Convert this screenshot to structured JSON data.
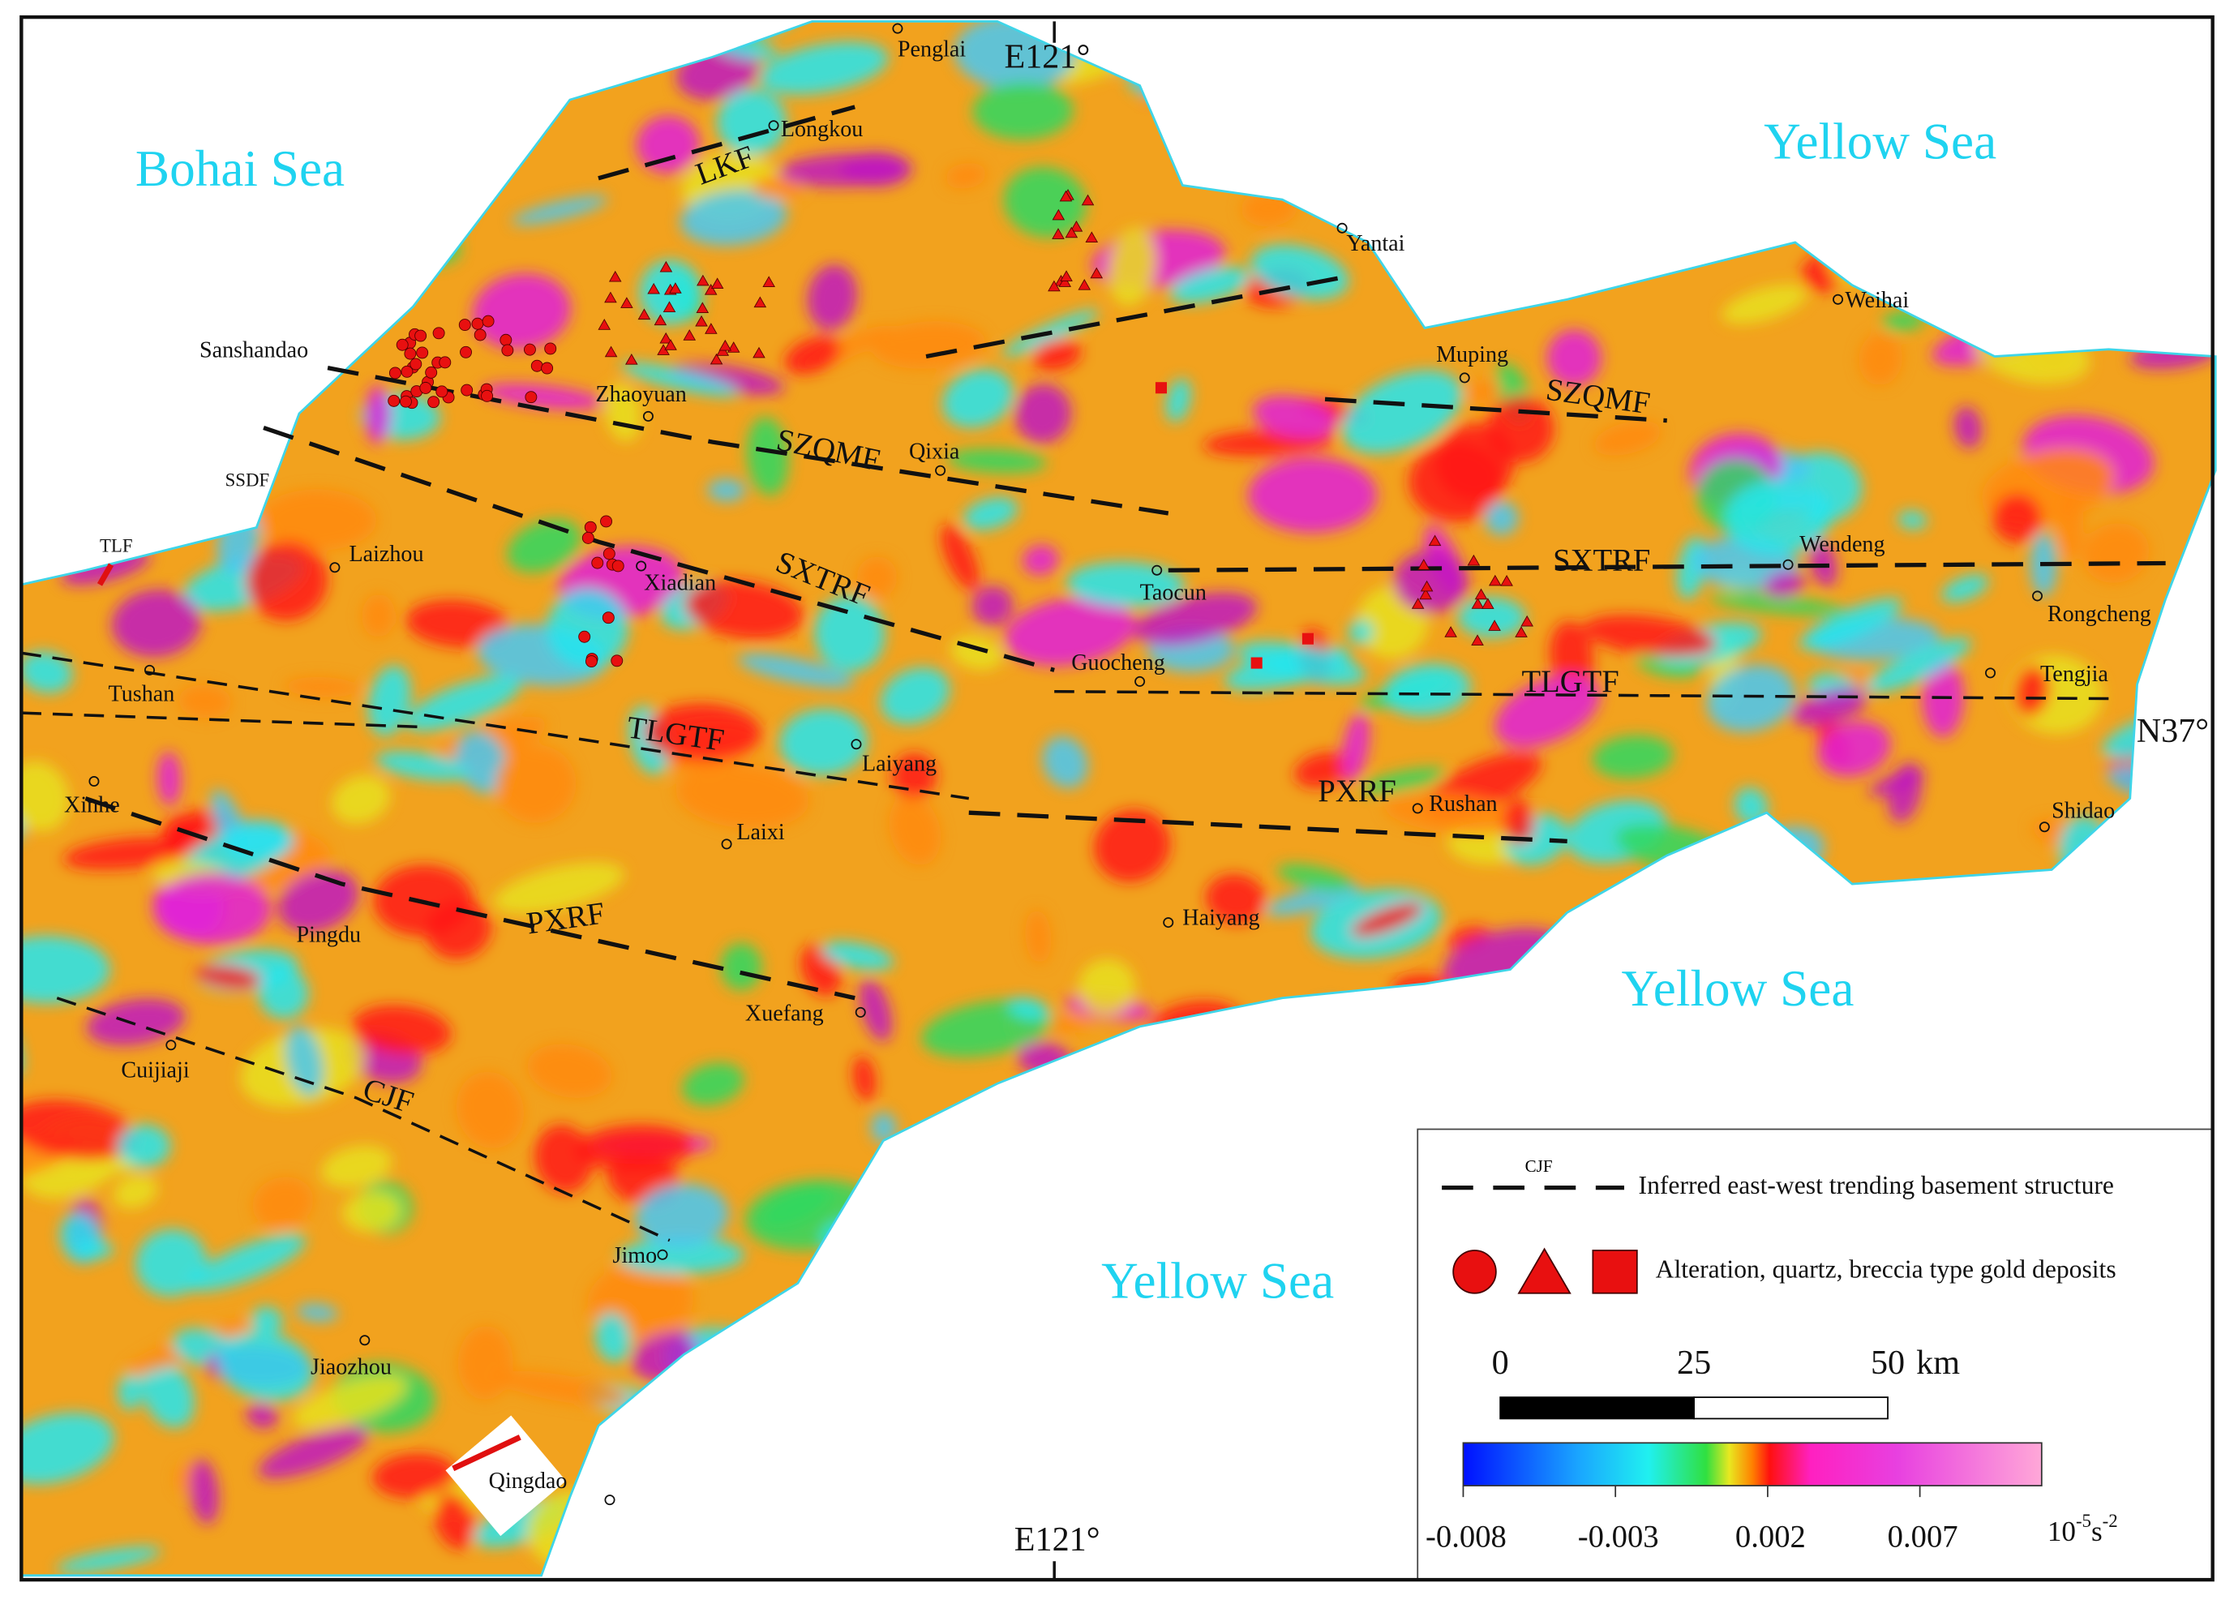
{
  "map": {
    "coordinates": {
      "top_longitude": "E121°",
      "latitude": "N37°",
      "bottom_longitude": "E121°"
    },
    "seas": [
      "Bohai Sea",
      "Yellow Sea",
      "Yellow Sea",
      "Yellow Sea"
    ],
    "cities": [
      "Penglai",
      "Longkou",
      "Yantai",
      "Sanshandao",
      "Zhaoyuan",
      "Qixia",
      "Muping",
      "Weihai",
      "Laizhou",
      "Xiadian",
      "Taocun",
      "Wendeng",
      "Rongcheng",
      "Tushan",
      "Guocheng",
      "Tengjia",
      "Laiyang",
      "Xinhe",
      "Rushan",
      "Shidao",
      "Laixi",
      "Pingdu",
      "Haiyang",
      "Xuefang",
      "Cuijiaji",
      "Jimo",
      "Jiaozhou",
      "Qingdao"
    ],
    "faults": [
      "LKF",
      "SZQMF",
      "SZQMF",
      "SXTRF",
      "SXTRF",
      "TLGTF",
      "TLGTF",
      "PXRF",
      "PXRF",
      "CJF"
    ],
    "side_labels": [
      "SSDF",
      "TLF"
    ]
  },
  "legend": {
    "fault_sample_label": "CJF",
    "fault_text": "Inferred east-west trending basement structure",
    "deposit_text": "Alteration, quartz, breccia type gold deposits",
    "scale_bar": {
      "ticks": [
        0,
        25,
        50
      ],
      "unit": "km"
    },
    "color_bar": {
      "lim": [
        -0.008,
        0.011
      ],
      "ticks": [
        -0.008,
        -0.003,
        0.002,
        0.007
      ],
      "unit": {
        "base": "10",
        "exponent": "-5",
        "symbol": "s",
        "symbol_exponent": "-2"
      }
    }
  }
}
